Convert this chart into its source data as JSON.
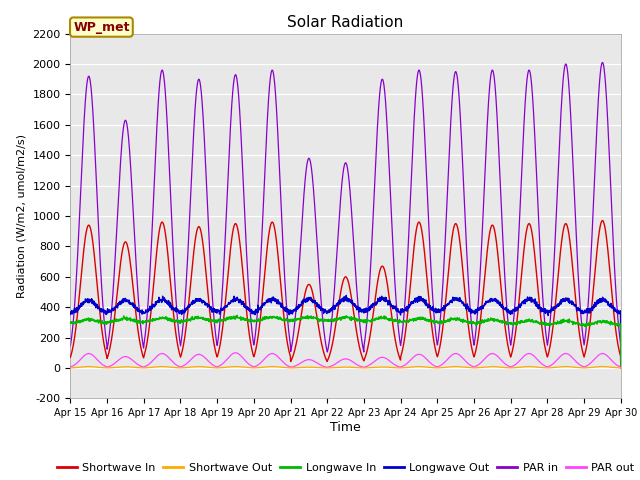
{
  "title": "Solar Radiation",
  "ylabel": "Radiation (W/m2, umol/m2/s)",
  "xlabel": "Time",
  "ylim": [
    -200,
    2200
  ],
  "xlim": [
    0,
    15
  ],
  "xtick_labels": [
    "Apr 15",
    "Apr 16",
    "Apr 17",
    "Apr 18",
    "Apr 19",
    "Apr 20",
    "Apr 21",
    "Apr 22",
    "Apr 23",
    "Apr 24",
    "Apr 25",
    "Apr 26",
    "Apr 27",
    "Apr 28",
    "Apr 29",
    "Apr 30"
  ],
  "ytick_values": [
    -200,
    0,
    200,
    400,
    600,
    800,
    1000,
    1200,
    1400,
    1600,
    1800,
    2000,
    2200
  ],
  "annotation_text": "WP_met",
  "annotation_box_facecolor": "#ffffcc",
  "annotation_box_edgecolor": "#aa8800",
  "bg_color": "#e8e8e8",
  "legend_entries": [
    {
      "label": "Shortwave In",
      "color": "#dd0000"
    },
    {
      "label": "Shortwave Out",
      "color": "#ffaa00"
    },
    {
      "label": "Longwave In",
      "color": "#00bb00"
    },
    {
      "label": "Longwave Out",
      "color": "#0000cc"
    },
    {
      "label": "PAR in",
      "color": "#8800cc"
    },
    {
      "label": "PAR out",
      "color": "#ff44ff"
    }
  ]
}
